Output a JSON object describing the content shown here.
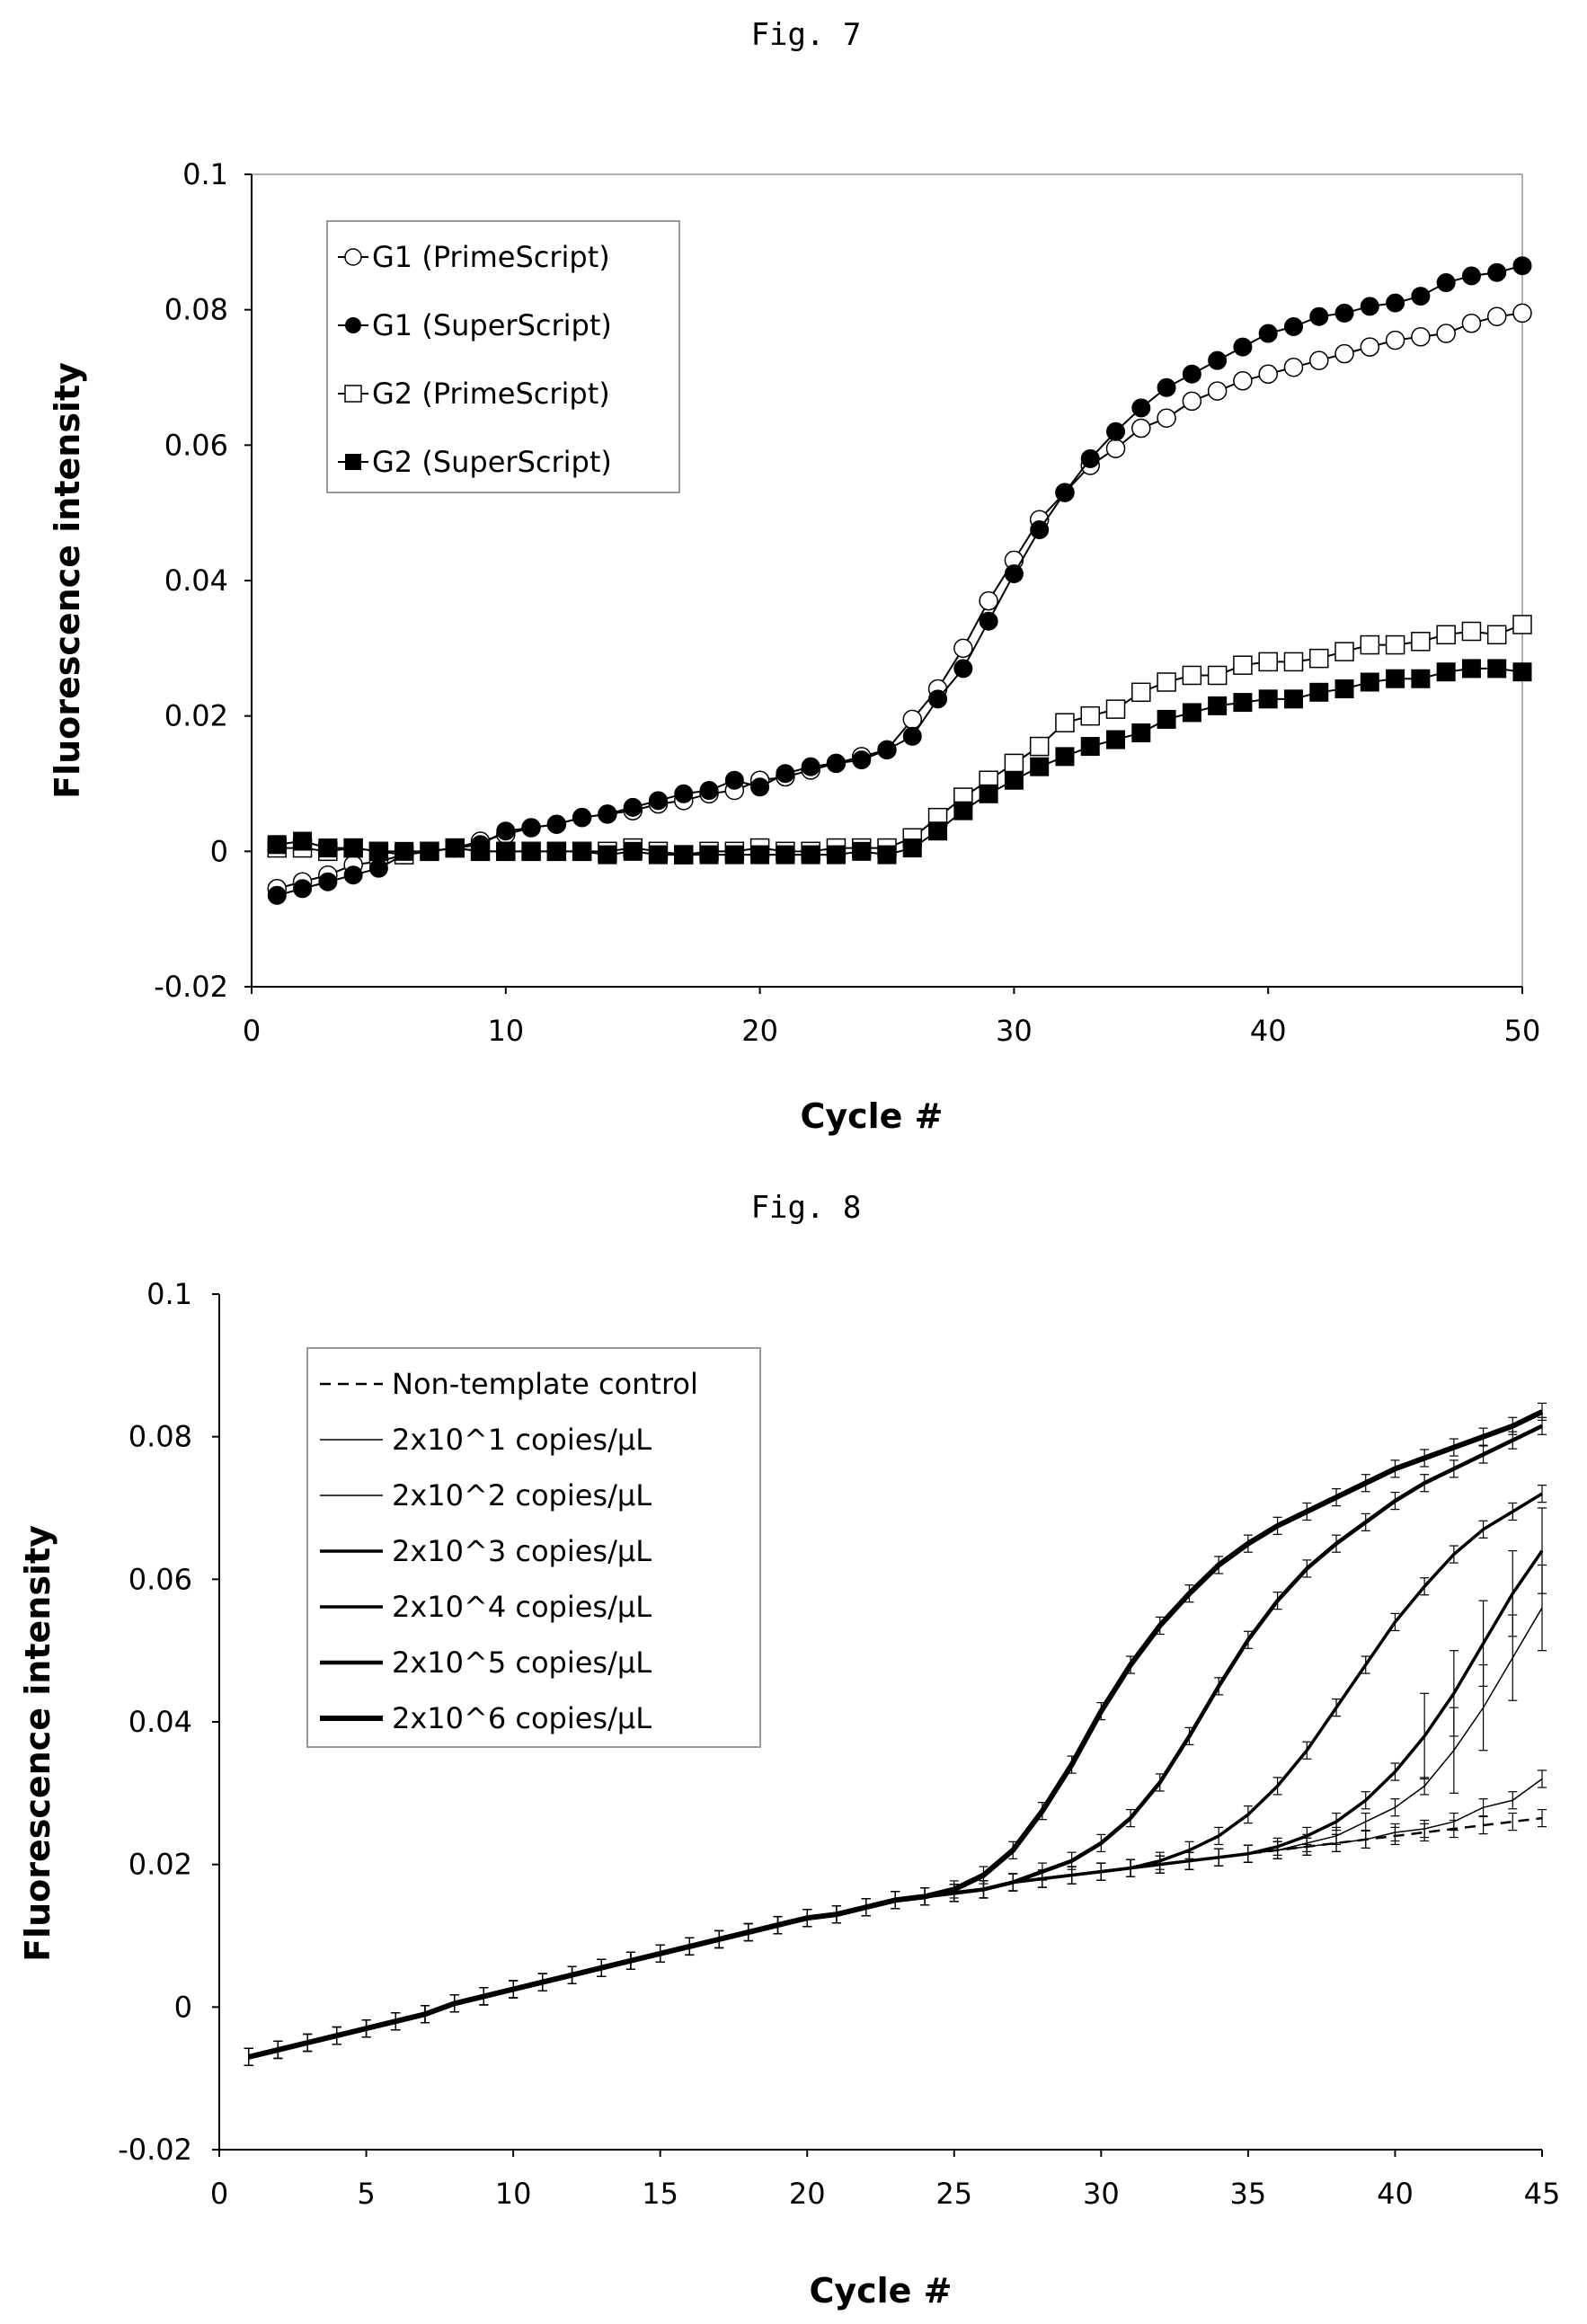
{
  "chart_data": [
    {
      "figure_label": "Fig. 7",
      "type": "scatter",
      "xlabel": "Cycle #",
      "ylabel": "Fluorescence intensity",
      "xlim": [
        0,
        50
      ],
      "ylim": [
        -0.02,
        0.1
      ],
      "xticks": [
        "0",
        "10",
        "20",
        "30",
        "40",
        "50"
      ],
      "yticks": [
        "-0.02",
        "0",
        "0.02",
        "0.04",
        "0.06",
        "0.08",
        "0.1"
      ],
      "grid": false,
      "legend_position": "top-left",
      "x": [
        1,
        2,
        3,
        4,
        5,
        6,
        7,
        8,
        9,
        10,
        11,
        12,
        13,
        14,
        15,
        16,
        17,
        18,
        19,
        20,
        21,
        22,
        23,
        24,
        25,
        26,
        27,
        28,
        29,
        30,
        31,
        32,
        33,
        34,
        35,
        36,
        37,
        38,
        39,
        40,
        41,
        42,
        43,
        44,
        45,
        46,
        47,
        48,
        49,
        50
      ],
      "series": [
        {
          "name": "G1 (PrimeScript)",
          "marker": "open-circle",
          "values": [
            -0.0055,
            -0.0045,
            -0.0035,
            -0.002,
            -0.0015,
            -0.0005,
            0.0,
            0.0005,
            0.0015,
            0.0025,
            0.0035,
            0.004,
            0.005,
            0.0055,
            0.006,
            0.007,
            0.0075,
            0.0085,
            0.009,
            0.0105,
            0.011,
            0.012,
            0.013,
            0.014,
            0.015,
            0.0195,
            0.024,
            0.03,
            0.037,
            0.043,
            0.049,
            0.053,
            0.057,
            0.0595,
            0.0625,
            0.064,
            0.0665,
            0.068,
            0.0695,
            0.0705,
            0.0715,
            0.0725,
            0.0735,
            0.0745,
            0.0755,
            0.076,
            0.0765,
            0.078,
            0.079,
            0.0795
          ]
        },
        {
          "name": "G1 (SuperScript)",
          "marker": "filled-circle",
          "values": [
            -0.0065,
            -0.0055,
            -0.0045,
            -0.0035,
            -0.0025,
            -0.0005,
            0.0,
            0.0005,
            0.001,
            0.003,
            0.0035,
            0.004,
            0.005,
            0.0055,
            0.0065,
            0.0075,
            0.0085,
            0.009,
            0.0105,
            0.0095,
            0.0115,
            0.0125,
            0.013,
            0.0135,
            0.015,
            0.017,
            0.0225,
            0.027,
            0.034,
            0.041,
            0.0475,
            0.053,
            0.058,
            0.062,
            0.0655,
            0.0685,
            0.0705,
            0.0725,
            0.0745,
            0.0765,
            0.0775,
            0.079,
            0.0795,
            0.0805,
            0.081,
            0.082,
            0.084,
            0.085,
            0.0855,
            0.0865
          ]
        },
        {
          "name": "G2 (PrimeScript)",
          "marker": "open-square",
          "values": [
            0.0005,
            0.0005,
            0.0,
            0.0005,
            0.0,
            -0.0005,
            0.0,
            0.0005,
            0.0,
            0.0,
            0.0,
            0.0,
            0.0,
            0.0,
            0.0005,
            0.0,
            -0.0005,
            0.0,
            0.0,
            0.0005,
            0.0,
            0.0,
            0.0005,
            0.0005,
            0.0005,
            0.002,
            0.005,
            0.008,
            0.0105,
            0.013,
            0.0155,
            0.019,
            0.02,
            0.021,
            0.0235,
            0.025,
            0.026,
            0.026,
            0.0275,
            0.028,
            0.028,
            0.0285,
            0.0295,
            0.0305,
            0.0305,
            0.031,
            0.032,
            0.0325,
            0.032,
            0.0335
          ]
        },
        {
          "name": "G2 (SuperScript)",
          "marker": "filled-square",
          "values": [
            0.001,
            0.0015,
            0.0005,
            0.0005,
            0.0,
            0.0,
            0.0,
            0.0005,
            0.0,
            0.0,
            0.0,
            0.0,
            0.0,
            -0.0005,
            0.0,
            -0.0005,
            -0.0005,
            -0.0005,
            -0.0005,
            -0.0005,
            -0.0005,
            -0.0005,
            -0.0005,
            0.0,
            -0.0005,
            0.0005,
            0.003,
            0.006,
            0.0085,
            0.0105,
            0.0125,
            0.014,
            0.0155,
            0.0165,
            0.0175,
            0.0195,
            0.0205,
            0.0215,
            0.022,
            0.0225,
            0.0225,
            0.0235,
            0.024,
            0.025,
            0.0255,
            0.0255,
            0.0265,
            0.027,
            0.027,
            0.0265
          ]
        }
      ]
    },
    {
      "figure_label": "Fig. 8",
      "type": "line",
      "xlabel": "Cycle #",
      "ylabel": "Fluorescence intensity",
      "xlim": [
        0,
        45
      ],
      "ylim": [
        -0.02,
        0.1
      ],
      "xticks": [
        "0",
        "5",
        "10",
        "15",
        "20",
        "25",
        "30",
        "35",
        "40",
        "45"
      ],
      "yticks": [
        "-0.02",
        "0",
        "0.02",
        "0.04",
        "0.06",
        "0.08",
        "0.1"
      ],
      "grid": false,
      "legend_position": "top-left",
      "error_bars": true,
      "x": [
        1,
        2,
        3,
        4,
        5,
        6,
        7,
        8,
        9,
        10,
        11,
        12,
        13,
        14,
        15,
        16,
        17,
        18,
        19,
        20,
        21,
        22,
        23,
        24,
        25,
        26,
        27,
        28,
        29,
        30,
        31,
        32,
        33,
        34,
        35,
        36,
        37,
        38,
        39,
        40,
        41,
        42,
        43,
        44,
        45
      ],
      "series": [
        {
          "name": "Non-template control",
          "style": "dashed",
          "values": [
            -0.007,
            -0.006,
            -0.005,
            -0.004,
            -0.003,
            -0.002,
            -0.001,
            0.0005,
            0.0015,
            0.0025,
            0.0035,
            0.0045,
            0.0055,
            0.0065,
            0.0075,
            0.0085,
            0.0095,
            0.0105,
            0.0115,
            0.0125,
            0.013,
            0.014,
            0.015,
            0.0155,
            0.016,
            0.0165,
            0.0175,
            0.018,
            0.0185,
            0.019,
            0.0195,
            0.02,
            0.0205,
            0.021,
            0.0215,
            0.022,
            0.0225,
            0.023,
            0.0235,
            0.024,
            0.0245,
            0.025,
            0.0255,
            0.026,
            0.0265
          ]
        },
        {
          "name": "2x10^1 copies/µL",
          "style": "thin",
          "values": [
            -0.007,
            -0.006,
            -0.005,
            -0.004,
            -0.003,
            -0.002,
            -0.001,
            0.0005,
            0.0015,
            0.0025,
            0.0035,
            0.0045,
            0.0055,
            0.0065,
            0.0075,
            0.0085,
            0.0095,
            0.0105,
            0.0115,
            0.0125,
            0.013,
            0.014,
            0.015,
            0.0155,
            0.016,
            0.0165,
            0.0175,
            0.018,
            0.0185,
            0.019,
            0.0195,
            0.02,
            0.0205,
            0.021,
            0.0215,
            0.022,
            0.0225,
            0.023,
            0.0235,
            0.0245,
            0.025,
            0.026,
            0.028,
            0.029,
            0.032
          ]
        },
        {
          "name": "2x10^2 copies/µL",
          "style": "thin",
          "values": [
            -0.007,
            -0.006,
            -0.005,
            -0.004,
            -0.003,
            -0.002,
            -0.001,
            0.0005,
            0.0015,
            0.0025,
            0.0035,
            0.0045,
            0.0055,
            0.0065,
            0.0075,
            0.0085,
            0.0095,
            0.0105,
            0.0115,
            0.0125,
            0.013,
            0.014,
            0.015,
            0.0155,
            0.016,
            0.0165,
            0.0175,
            0.018,
            0.0185,
            0.019,
            0.0195,
            0.02,
            0.0205,
            0.021,
            0.0215,
            0.022,
            0.023,
            0.024,
            0.026,
            0.028,
            0.031,
            0.036,
            0.042,
            0.049,
            0.056
          ]
        },
        {
          "name": "2x10^3 copies/µL",
          "style": "medium",
          "values": [
            -0.007,
            -0.006,
            -0.005,
            -0.004,
            -0.003,
            -0.002,
            -0.001,
            0.0005,
            0.0015,
            0.0025,
            0.0035,
            0.0045,
            0.0055,
            0.0065,
            0.0075,
            0.0085,
            0.0095,
            0.0105,
            0.0115,
            0.0125,
            0.013,
            0.014,
            0.015,
            0.0155,
            0.016,
            0.0165,
            0.0175,
            0.018,
            0.0185,
            0.019,
            0.0195,
            0.02,
            0.0205,
            0.021,
            0.0215,
            0.0225,
            0.024,
            0.026,
            0.029,
            0.033,
            0.038,
            0.044,
            0.051,
            0.058,
            0.064
          ]
        },
        {
          "name": "2x10^4 copies/µL",
          "style": "medium",
          "values": [
            -0.007,
            -0.006,
            -0.005,
            -0.004,
            -0.003,
            -0.002,
            -0.001,
            0.0005,
            0.0015,
            0.0025,
            0.0035,
            0.0045,
            0.0055,
            0.0065,
            0.0075,
            0.0085,
            0.0095,
            0.0105,
            0.0115,
            0.0125,
            0.013,
            0.014,
            0.015,
            0.0155,
            0.016,
            0.0165,
            0.0175,
            0.018,
            0.0185,
            0.019,
            0.0195,
            0.0205,
            0.022,
            0.024,
            0.027,
            0.031,
            0.036,
            0.042,
            0.048,
            0.054,
            0.059,
            0.0635,
            0.067,
            0.0695,
            0.072
          ]
        },
        {
          "name": "2x10^5 copies/µL",
          "style": "thick",
          "values": [
            -0.007,
            -0.006,
            -0.005,
            -0.004,
            -0.003,
            -0.002,
            -0.001,
            0.0005,
            0.0015,
            0.0025,
            0.0035,
            0.0045,
            0.0055,
            0.0065,
            0.0075,
            0.0085,
            0.0095,
            0.0105,
            0.0115,
            0.0125,
            0.013,
            0.014,
            0.015,
            0.0155,
            0.016,
            0.0165,
            0.0175,
            0.019,
            0.0205,
            0.023,
            0.0265,
            0.0315,
            0.038,
            0.045,
            0.0515,
            0.057,
            0.0615,
            0.065,
            0.068,
            0.071,
            0.0735,
            0.0755,
            0.0775,
            0.0795,
            0.0815
          ]
        },
        {
          "name": "2x10^6 copies/µL",
          "style": "thickest",
          "values": [
            -0.007,
            -0.006,
            -0.005,
            -0.004,
            -0.003,
            -0.002,
            -0.001,
            0.0005,
            0.0015,
            0.0025,
            0.0035,
            0.0045,
            0.0055,
            0.0065,
            0.0075,
            0.0085,
            0.0095,
            0.0105,
            0.0115,
            0.0125,
            0.013,
            0.014,
            0.015,
            0.0155,
            0.0165,
            0.0185,
            0.022,
            0.0275,
            0.034,
            0.0415,
            0.048,
            0.0535,
            0.058,
            0.062,
            0.065,
            0.0675,
            0.0695,
            0.0715,
            0.0735,
            0.0755,
            0.077,
            0.0785,
            0.08,
            0.0815,
            0.0835
          ]
        }
      ]
    }
  ]
}
